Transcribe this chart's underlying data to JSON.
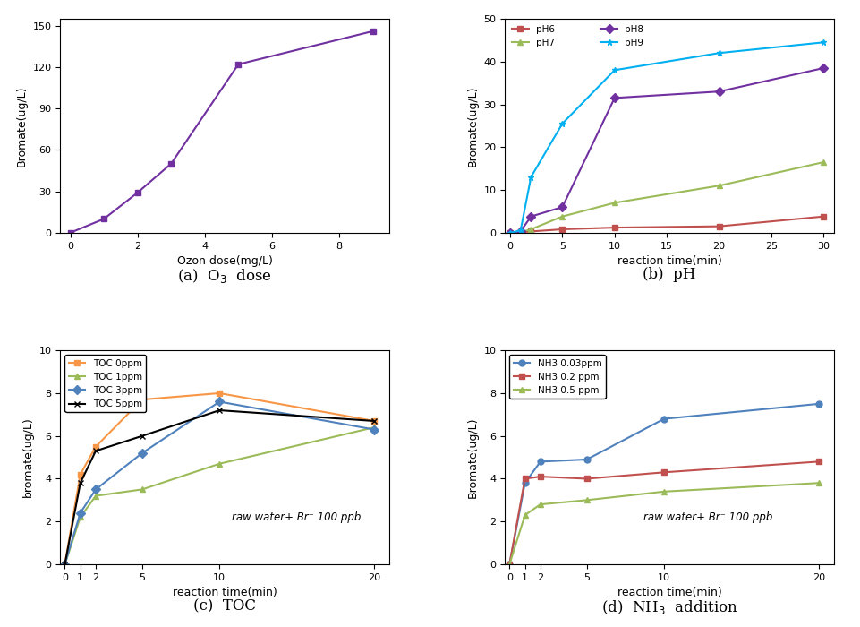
{
  "panel_a": {
    "x": [
      0,
      1,
      2,
      3,
      5,
      9
    ],
    "y": [
      0,
      10,
      29,
      50,
      122,
      146
    ],
    "color": "#7030A0",
    "marker": "s",
    "xlabel": "Ozon dose(mg/L)",
    "ylabel": "Bromate(ug/L)",
    "ylim": [
      0,
      155
    ],
    "xlim": [
      -0.3,
      9.5
    ],
    "yticks": [
      0,
      30,
      60,
      90,
      120,
      150
    ],
    "xticks": [
      0,
      2,
      4,
      6,
      8
    ],
    "title": "(a)  O$_3$  dose"
  },
  "panel_b": {
    "series": [
      {
        "label": "pH6",
        "x": [
          0,
          1,
          2,
          5,
          10,
          20,
          30
        ],
        "y": [
          0,
          0.05,
          0.3,
          0.8,
          1.2,
          1.5,
          3.8
        ],
        "color": "#C0504D",
        "marker": "s"
      },
      {
        "label": "pH7",
        "x": [
          0,
          1,
          2,
          5,
          10,
          20,
          30
        ],
        "y": [
          0,
          0.1,
          0.8,
          3.8,
          7.0,
          11.0,
          16.5
        ],
        "color": "#9BBB59",
        "marker": "^"
      },
      {
        "label": "pH8",
        "x": [
          0,
          1,
          2,
          5,
          10,
          20,
          30
        ],
        "y": [
          0,
          0.3,
          3.8,
          6.0,
          31.5,
          33.0,
          38.5
        ],
        "color": "#7030A0",
        "marker": "D"
      },
      {
        "label": "pH9",
        "x": [
          0,
          1,
          2,
          5,
          10,
          20,
          30
        ],
        "y": [
          0,
          0.5,
          13.0,
          25.5,
          38.0,
          42.0,
          44.5
        ],
        "color": "#00B0F0",
        "marker": "*"
      }
    ],
    "xlabel": "reaction time(min)",
    "ylabel": "Bromate(ug/L)",
    "ylim": [
      0,
      50
    ],
    "xlim": [
      -0.5,
      31
    ],
    "yticks": [
      0,
      10,
      20,
      30,
      40,
      50
    ],
    "xticks": [
      0,
      5,
      10,
      15,
      20,
      25,
      30
    ],
    "title": "(b)  pH"
  },
  "panel_c": {
    "series": [
      {
        "label": "TOC 0ppm",
        "x": [
          0,
          1,
          2,
          5,
          10,
          20
        ],
        "y": [
          0,
          4.2,
          5.5,
          7.7,
          8.0,
          6.7
        ],
        "color": "#F79646",
        "marker": "s"
      },
      {
        "label": "TOC 1ppm",
        "x": [
          0,
          1,
          2,
          5,
          10,
          20
        ],
        "y": [
          0,
          2.2,
          3.2,
          3.5,
          4.7,
          6.4
        ],
        "color": "#9BBB59",
        "marker": "^"
      },
      {
        "label": "TOC 3ppm",
        "x": [
          0,
          1,
          2,
          5,
          10,
          20
        ],
        "y": [
          0,
          2.4,
          3.5,
          5.2,
          7.6,
          6.3
        ],
        "color": "#4F81BD",
        "marker": "D"
      },
      {
        "label": "TOC 5ppm",
        "x": [
          0,
          1,
          2,
          5,
          10,
          20
        ],
        "y": [
          0,
          3.8,
          5.3,
          6.0,
          7.2,
          6.7
        ],
        "color": "#000000",
        "marker": "x"
      }
    ],
    "xlabel": "reaction time(min)",
    "ylabel": "bromate(ug/L)",
    "ylim": [
      0,
      10
    ],
    "xlim": [
      -0.3,
      21
    ],
    "yticks": [
      0,
      2,
      4,
      6,
      8,
      10
    ],
    "xticks": [
      0,
      1,
      2,
      5,
      10,
      20
    ],
    "annotation": "raw water+ Br⁻ 100 ppb",
    "title": "(c)  TOC"
  },
  "panel_d": {
    "series": [
      {
        "label": "NH3 0.03ppm",
        "x": [
          0,
          1,
          2,
          5,
          10,
          20
        ],
        "y": [
          0,
          3.8,
          4.8,
          4.9,
          6.8,
          7.5
        ],
        "color": "#4F81BD",
        "marker": "o"
      },
      {
        "label": "NH3 0.2 ppm",
        "x": [
          0,
          1,
          2,
          5,
          10,
          20
        ],
        "y": [
          0,
          4.0,
          4.1,
          4.0,
          4.3,
          4.8
        ],
        "color": "#C0504D",
        "marker": "s"
      },
      {
        "label": "NH3 0.5 ppm",
        "x": [
          0,
          1,
          2,
          5,
          10,
          20
        ],
        "y": [
          0,
          2.3,
          2.8,
          3.0,
          3.4,
          3.8
        ],
        "color": "#9BBB59",
        "marker": "^"
      }
    ],
    "xlabel": "reaction time(min)",
    "ylabel": "Bromate(ug/L)",
    "ylim": [
      0,
      10
    ],
    "xlim": [
      -0.3,
      21
    ],
    "yticks": [
      0,
      2,
      4,
      6,
      8,
      10
    ],
    "xticks": [
      0,
      1,
      2,
      5,
      10,
      20
    ],
    "annotation": "raw water+ Br⁻ 100 ppb",
    "title": "(d)  NH$_3$  addition"
  },
  "fig_width": 9.61,
  "fig_height": 7.0,
  "dpi": 100
}
